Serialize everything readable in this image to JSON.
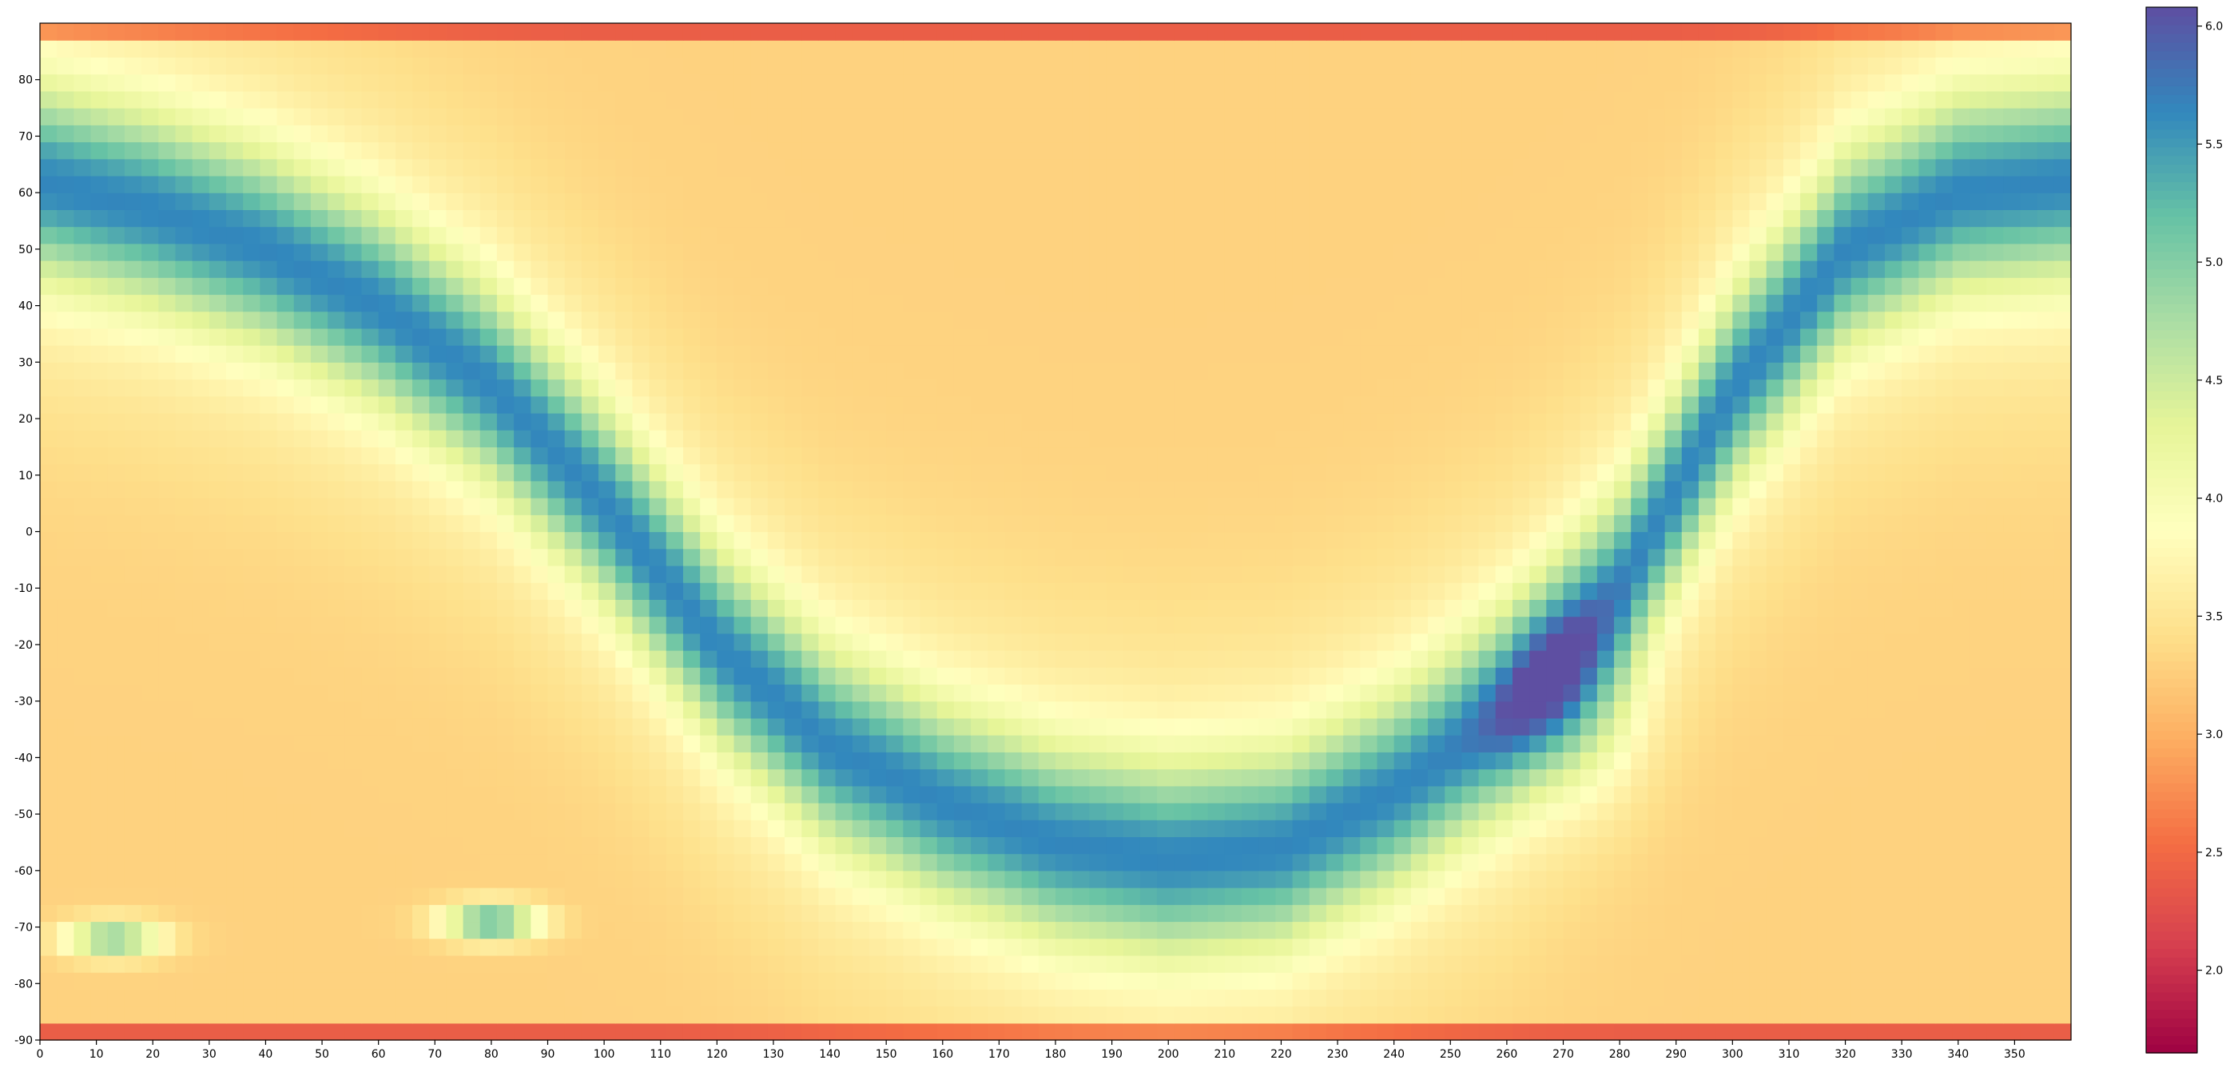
{
  "chart_data": {
    "type": "heatmap",
    "title": "",
    "xlabel": "",
    "ylabel": "",
    "xlim": [
      0,
      360
    ],
    "ylim": [
      -90,
      90
    ],
    "x_ticks": [
      0,
      10,
      20,
      30,
      40,
      50,
      60,
      70,
      80,
      90,
      100,
      110,
      120,
      130,
      140,
      150,
      160,
      170,
      180,
      190,
      200,
      210,
      220,
      230,
      240,
      250,
      260,
      270,
      280,
      290,
      300,
      310,
      320,
      330,
      340,
      350
    ],
    "y_ticks": [
      -90,
      -80,
      -70,
      -60,
      -50,
      -40,
      -30,
      -20,
      -10,
      0,
      10,
      20,
      30,
      40,
      50,
      60,
      70,
      80
    ],
    "colorbar": {
      "colormap": "Spectral",
      "min": 1.65,
      "max": 6.08,
      "ticks": [
        "2.0",
        "2.5",
        "3.0",
        "3.5",
        "4.0",
        "4.5",
        "5.0",
        "5.5",
        "6.0"
      ],
      "colors": [
        "#9e0142",
        "#d53e4f",
        "#f46d43",
        "#fdae61",
        "#fee08b",
        "#ffffbf",
        "#e6f598",
        "#abdda4",
        "#66c2a5",
        "#3288bd",
        "#5e4fa2"
      ]
    },
    "field": {
      "background": 3.3,
      "pole_edge": 1.85,
      "band_peak": 5.1,
      "band_path_lon": [
        0,
        20,
        40,
        60,
        80,
        100,
        120,
        140,
        160,
        180,
        200,
        220,
        240,
        260,
        280,
        300,
        320,
        340,
        360
      ],
      "band_path_lat": [
        62,
        57,
        50,
        40,
        26,
        5,
        -20,
        -38,
        -48,
        -55,
        -58,
        -56,
        -46,
        -32,
        -10,
        25,
        50,
        60,
        62
      ],
      "dark_core": {
        "lon": 270,
        "lat": -30,
        "value": 6.0
      },
      "satellite_blobs": [
        {
          "lon": 80,
          "lat": -69,
          "value": 5.4
        },
        {
          "lon": 13,
          "lat": -72,
          "value": 5.1
        }
      ]
    }
  }
}
